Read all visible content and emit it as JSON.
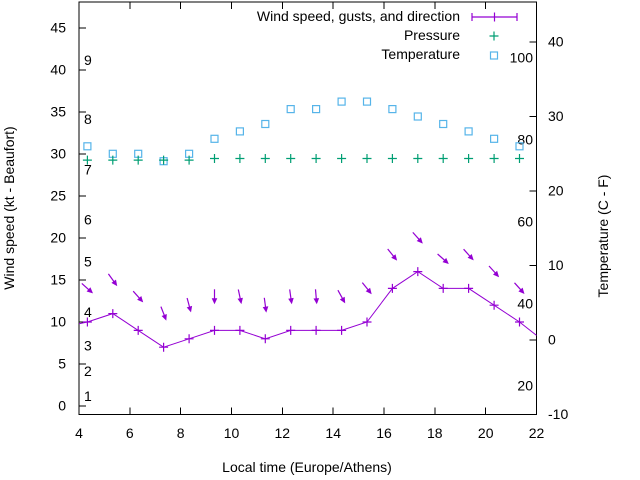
{
  "chart_data": {
    "type": "line",
    "title": "",
    "legend": [
      {
        "label": "Wind speed, gusts, and direction",
        "series": "wind",
        "marker": "errorbar-plus"
      },
      {
        "label": "Pressure",
        "series": "pressure",
        "marker": "plus"
      },
      {
        "label": "Temperature",
        "series": "temperature",
        "marker": "open-square"
      }
    ],
    "colors": {
      "wind": "#9400d3",
      "pressure": "#009e73",
      "temperature": "#56b4e9",
      "axis": "#000000",
      "background": "#ffffff"
    },
    "x_axis": {
      "label": "Local time (Europe/Athens)",
      "min": 4,
      "max": 22,
      "ticks": [
        4,
        6,
        8,
        10,
        12,
        14,
        16,
        18,
        20,
        22
      ]
    },
    "y_left": {
      "label": "Wind speed (kt - Beaufort)",
      "min": 0,
      "max": 45,
      "ticks": [
        0,
        5,
        10,
        15,
        20,
        25,
        30,
        35,
        40,
        45
      ]
    },
    "y_right": {
      "label": "Temperature (C - F)",
      "min": -10,
      "max": 40,
      "ticks": [
        -10,
        0,
        10,
        20,
        30,
        40
      ]
    },
    "beaufort": [
      {
        "label": "1",
        "kt": 1
      },
      {
        "label": "2",
        "kt": 4
      },
      {
        "label": "3",
        "kt": 7
      },
      {
        "label": "4",
        "kt": 11
      },
      {
        "label": "5",
        "kt": 17
      },
      {
        "label": "6",
        "kt": 22
      },
      {
        "label": "7",
        "kt": 28
      },
      {
        "label": "8",
        "kt": 34
      },
      {
        "label": "9",
        "kt": 41
      }
    ],
    "inner_scale": {
      "ticks": [
        100,
        80,
        60,
        40,
        20
      ]
    },
    "series": {
      "hours": [
        4.33,
        5.33,
        6.33,
        7.33,
        8.33,
        9.33,
        10.33,
        11.33,
        12.33,
        13.33,
        14.33,
        15.33,
        16.33,
        17.33,
        18.33,
        19.33,
        20.33,
        21.33
      ],
      "wind_speed_kt": [
        10,
        11,
        9,
        7,
        8,
        9,
        9,
        8,
        9,
        9,
        9,
        10,
        14,
        16,
        14,
        14,
        12,
        10
      ],
      "wind_gust_kt": [
        14,
        15,
        13,
        11,
        12,
        13,
        13,
        12,
        13,
        13,
        13,
        14,
        18,
        20,
        17.5,
        18,
        16,
        14
      ],
      "wind_dir_deg": [
        42,
        54,
        48,
        69,
        75,
        90,
        78,
        82,
        82,
        85,
        61,
        51,
        51,
        48,
        42,
        48,
        48,
        48
      ],
      "pressure": [
        75.1,
        75.1,
        75.1,
        75.1,
        75.1,
        75.5,
        75.5,
        75.5,
        75.5,
        75.5,
        75.5,
        75.5,
        75.5,
        75.5,
        75.5,
        75.5,
        75.5,
        75.5
      ],
      "temperature_c": [
        26,
        25,
        25,
        24,
        25,
        27,
        28,
        29,
        31,
        31,
        32,
        32,
        31,
        30,
        29,
        28,
        27,
        26
      ]
    },
    "wind_line_edges": {
      "left": {
        "hour": 4.0,
        "kt": 9.8
      },
      "right": {
        "hour": 22.0,
        "kt": 8.4
      }
    }
  }
}
